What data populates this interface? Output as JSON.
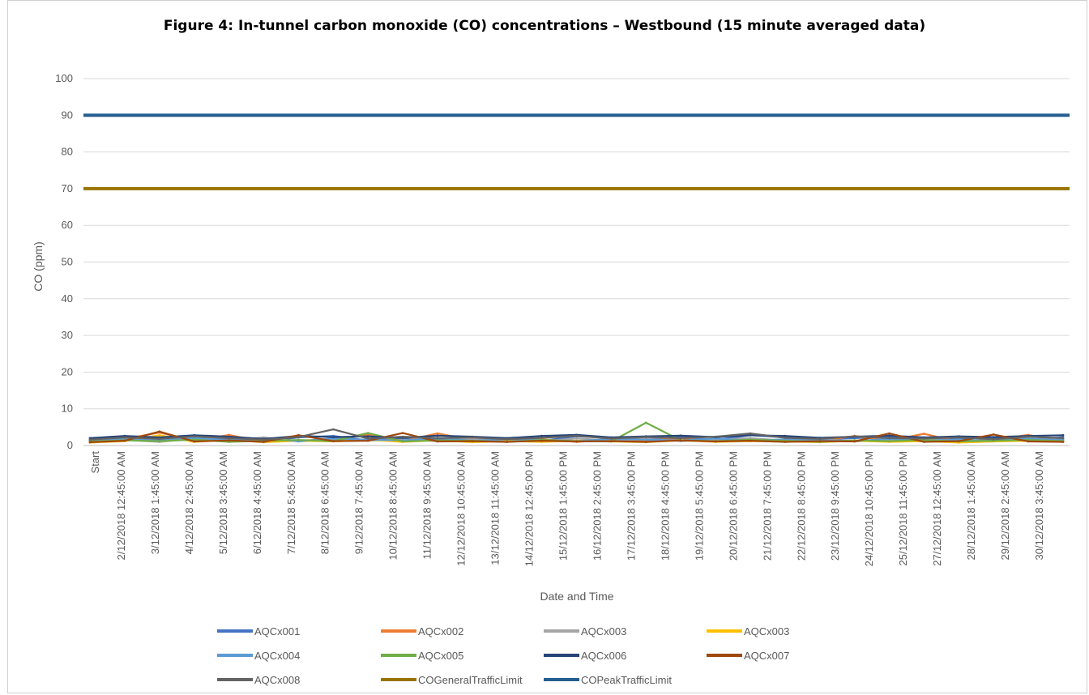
{
  "chart_data": {
    "type": "line",
    "title": "Figure 4: In-tunnel carbon monoxide (CO) concentrations – Westbound (15 minute averaged data)",
    "xlabel": "Date and Time",
    "ylabel": "CO (ppm)",
    "ylim": [
      0,
      100
    ],
    "yticks": [
      "0",
      "10",
      "20",
      "30",
      "40",
      "50",
      "60",
      "70",
      "80",
      "90",
      "100"
    ],
    "grid": true,
    "legend_position": "bottom",
    "categories": [
      "Start",
      "2/12/2018 12:45:00 AM",
      "3/12/2018 1:45:00 AM",
      "4/12/2018 2:45:00 AM",
      "5/12/2018 3:45:00 AM",
      "6/12/2018 4:45:00 AM",
      "7/12/2018 5:45:00 AM",
      "8/12/2018 6:45:00 AM",
      "9/12/2018 7:45:00 AM",
      "10/12/2018 8:45:00 AM",
      "11/12/2018 9:45:00 AM",
      "12/12/2018 10:45:00 AM",
      "13/12/2018 11:45:00 AM",
      "14/12/2018 12:45:00 PM",
      "15/12/2018 1:45:00 PM",
      "16/12/2018 2:45:00 PM",
      "17/12/2018 3:45:00 PM",
      "18/12/2018 4:45:00 PM",
      "19/12/2018 5:45:00 PM",
      "20/12/2018 6:45:00 PM",
      "21/12/2018 7:45:00 PM",
      "22/12/2018 8:45:00 PM",
      "23/12/2018 9:45:00 PM",
      "24/12/2018 10:45:00 PM",
      "25/12/2018 11:45:00 PM",
      "27/12/2018 12:45:00 AM",
      "28/12/2018 1:45:00 AM",
      "29/12/2018 2:45:00 AM",
      "30/12/2018 3:45:00 AM"
    ],
    "series": [
      {
        "name": "AQCx001",
        "color": "#4472c4",
        "values": [
          1.5,
          2.0,
          1.2,
          2.4,
          1.8,
          1.1,
          2.2,
          2.6,
          1.4,
          2.0,
          1.6,
          2.3,
          1.9,
          1.3,
          2.5,
          2.1,
          1.7,
          2.4,
          1.5,
          2.8,
          2.2,
          1.6,
          2.0,
          2.4,
          1.4,
          1.9,
          2.2,
          1.6,
          2.3
        ]
      },
      {
        "name": "AQCx002",
        "color": "#ed7d31",
        "values": [
          1.0,
          1.8,
          3.5,
          1.3,
          2.9,
          1.0,
          1.4,
          1.6,
          3.0,
          1.2,
          3.3,
          1.5,
          1.2,
          1.7,
          1.0,
          1.6,
          1.3,
          2.0,
          1.1,
          1.8,
          1.4,
          1.2,
          2.6,
          1.3,
          3.2,
          1.0,
          1.5,
          2.9,
          1.1
        ]
      },
      {
        "name": "AQCx003",
        "color": "#a5a5a5",
        "values": [
          1.2,
          1.5,
          1.0,
          1.9,
          1.4,
          2.2,
          1.1,
          1.7,
          1.3,
          1.6,
          1.2,
          1.8,
          1.5,
          1.2,
          1.9,
          1.4,
          1.8,
          1.2,
          1.6,
          2.0,
          1.3,
          1.7,
          1.1,
          1.5,
          1.8,
          1.2,
          1.6,
          1.3,
          1.7
        ]
      },
      {
        "name": "AQCx003",
        "color": "#ffc000",
        "values": [
          0.8,
          1.2,
          2.8,
          1.0,
          1.5,
          0.9,
          1.3,
          1.1,
          1.6,
          1.0,
          1.4,
          0.9,
          1.2,
          1.0,
          1.3,
          1.1,
          0.9,
          1.4,
          1.0,
          1.2,
          1.1,
          0.9,
          1.3,
          1.0,
          1.2,
          0.8,
          1.1,
          1.3,
          1.0
        ]
      },
      {
        "name": "AQCx004",
        "color": "#5b9bd5",
        "values": [
          1.3,
          1.7,
          1.4,
          2.0,
          1.5,
          1.8,
          1.2,
          1.9,
          1.6,
          1.4,
          2.1,
          1.3,
          1.7,
          1.5,
          1.2,
          1.8,
          1.6,
          1.4,
          1.9,
          1.3,
          1.7,
          1.5,
          1.2,
          1.8,
          1.4,
          1.6,
          1.3,
          1.9,
          1.5
        ]
      },
      {
        "name": "AQCx005",
        "color": "#70ad47",
        "values": [
          1.1,
          1.4,
          1.2,
          1.6,
          1.0,
          1.3,
          1.5,
          1.2,
          3.4,
          1.1,
          1.4,
          1.3,
          1.0,
          1.5,
          1.2,
          1.1,
          6.2,
          1.4,
          1.2,
          1.6,
          1.3,
          1.0,
          1.4,
          1.2,
          1.5,
          1.1,
          1.3,
          1.5,
          1.2
        ]
      },
      {
        "name": "AQCx006",
        "color": "#264478",
        "values": [
          2.0,
          2.6,
          2.2,
          2.8,
          2.4,
          1.8,
          2.6,
          2.3,
          2.5,
          2.1,
          2.7,
          2.4,
          2.0,
          2.6,
          2.9,
          2.2,
          2.5,
          2.7,
          2.3,
          2.8,
          2.6,
          2.1,
          2.4,
          2.7,
          2.2,
          2.5,
          2.3,
          2.6,
          2.8
        ]
      },
      {
        "name": "AQCx007",
        "color": "#9e480e",
        "values": [
          0.9,
          1.3,
          3.8,
          1.1,
          1.4,
          1.0,
          2.8,
          1.2,
          1.3,
          3.4,
          1.1,
          1.2,
          1.0,
          1.3,
          1.1,
          1.2,
          1.0,
          1.4,
          1.1,
          1.3,
          1.0,
          1.2,
          1.1,
          3.3,
          1.0,
          1.2,
          3.0,
          1.1,
          1.0
        ]
      },
      {
        "name": "AQCx008",
        "color": "#636363",
        "values": [
          1.6,
          2.2,
          1.8,
          2.5,
          2.0,
          1.6,
          2.3,
          4.4,
          1.9,
          2.4,
          2.0,
          2.2,
          1.7,
          2.1,
          2.6,
          1.9,
          2.3,
          2.0,
          2.4,
          3.3,
          2.1,
          1.8,
          2.5,
          2.0,
          1.9,
          2.2,
          1.7,
          2.4,
          2.0
        ]
      },
      {
        "name": "COGeneralTrafficLimit",
        "color": "#997300",
        "constant": 70
      },
      {
        "name": "COPeakTrafficLimit",
        "color": "#255e91",
        "constant": 90
      }
    ]
  }
}
